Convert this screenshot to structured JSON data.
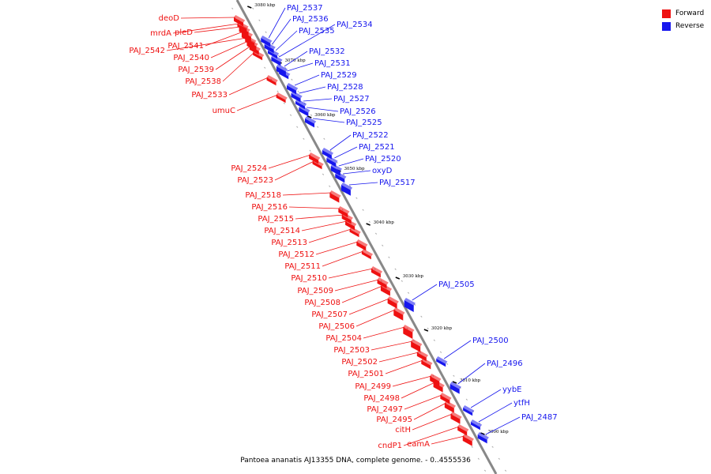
{
  "caption": "Pantoea ananatis AJ13355 DNA, complete genome. - 0..4555536",
  "legend": [
    {
      "label": "Forward",
      "color": "#ee1111"
    },
    {
      "label": "Reverse",
      "color": "#1616ee"
    }
  ],
  "colors": {
    "forward": "#ee1111",
    "reverse": "#1616ee",
    "backbone": "#888888",
    "tick": "#000000"
  },
  "scale_markers": [
    "3080 kbp",
    "3070 kbp",
    "3060 kbp",
    "3050 kbp",
    "3040 kbp",
    "3030 kbp",
    "3020 kbp",
    "3010 kbp",
    "3000 kbp"
  ],
  "genes_forward": [
    "deoD",
    "mrdA",
    "pleD",
    "PAJ_2541",
    "PAJ_2542",
    "PAJ_2540",
    "PAJ_2539",
    "PAJ_2538",
    "PAJ_2533",
    "umuC",
    "PAJ_2524",
    "PAJ_2523",
    "PAJ_2518",
    "PAJ_2516",
    "PAJ_2515",
    "PAJ_2514",
    "PAJ_2513",
    "PAJ_2512",
    "PAJ_2511",
    "PAJ_2510",
    "PAJ_2509",
    "PAJ_2508",
    "PAJ_2507",
    "PAJ_2506",
    "PAJ_2504",
    "PAJ_2503",
    "PAJ_2502",
    "PAJ_2501",
    "PAJ_2499",
    "PAJ_2498",
    "PAJ_2497",
    "PAJ_2495",
    "citH",
    "cndP1",
    "eamA"
  ],
  "genes_reverse": [
    "PAJ_2537",
    "PAJ_2536",
    "PAJ_2535",
    "PAJ_2534",
    "PAJ_2532",
    "PAJ_2531",
    "PAJ_2529",
    "PAJ_2528",
    "PAJ_2527",
    "PAJ_2526",
    "PAJ_2525",
    "PAJ_2522",
    "PAJ_2521",
    "PAJ_2520",
    "oxyD",
    "PAJ_2517",
    "PAJ_2505",
    "PAJ_2500",
    "PAJ_2496",
    "yybE",
    "ytfH",
    "PAJ_2487"
  ]
}
